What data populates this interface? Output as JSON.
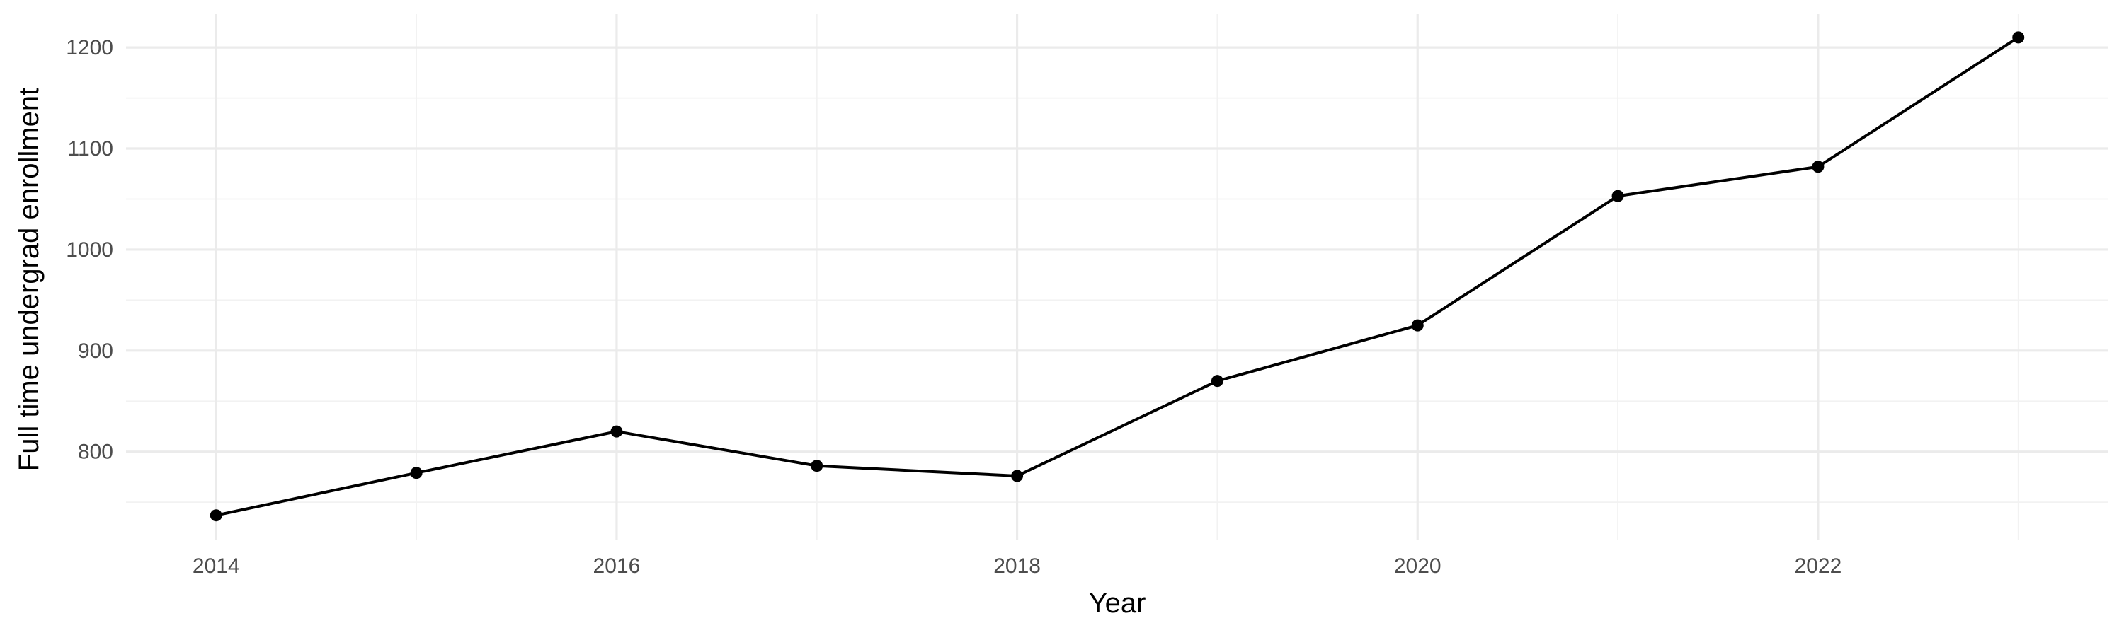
{
  "chart_data": {
    "type": "line",
    "title": "",
    "xlabel": "Year",
    "ylabel": "Full time undergrad enrollment",
    "x": [
      2014,
      2015,
      2016,
      2017,
      2018,
      2019,
      2020,
      2021,
      2022,
      2023
    ],
    "series": [
      {
        "values": [
          737,
          779,
          820,
          786,
          776,
          870,
          925,
          1053,
          1082,
          1210
        ]
      }
    ],
    "xlim": [
      2013.55,
      2023.45
    ],
    "ylim": [
      713,
      1233
    ],
    "x_ticks": [
      2014,
      2016,
      2018,
      2020,
      2022
    ],
    "x_tick_labels": [
      "2014",
      "2016",
      "2018",
      "2020",
      "2022"
    ],
    "y_ticks": [
      800,
      900,
      1000,
      1100,
      1200
    ],
    "y_tick_labels": [
      "800",
      "900",
      "1000",
      "1100",
      "1200"
    ],
    "x_minor_ticks": [
      2015,
      2017,
      2019,
      2021,
      2023
    ],
    "y_minor_ticks": [
      750,
      850,
      950,
      1050,
      1150
    ],
    "grid": true,
    "legend": "none",
    "line_color": "#000000",
    "grid_color": "#ebebeb",
    "tick_label_color": "#4d4d4d"
  }
}
